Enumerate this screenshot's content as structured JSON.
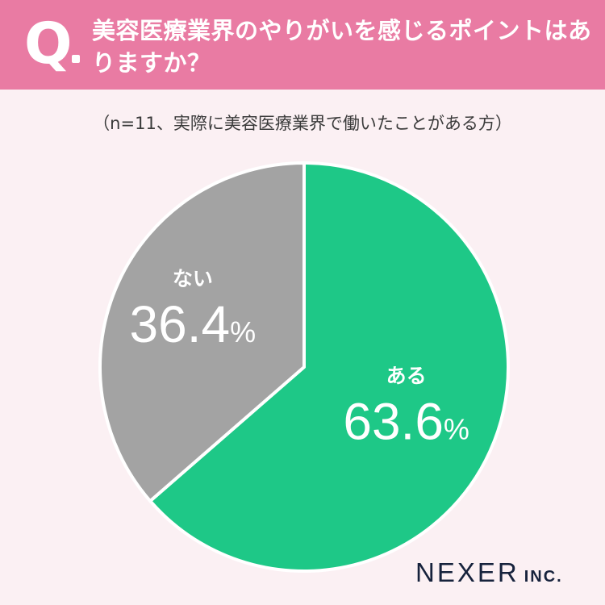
{
  "header": {
    "q_mark": "Q",
    "question": "美容医療業界のやりがいを感じるポイントはありますか？"
  },
  "note": "（n=11、実際に美容医療業界で働いたことがある方）",
  "logo": {
    "name": "NEXER",
    "suffix": "INC."
  },
  "colors": {
    "header": "#e97ba3",
    "background": "#fbf0f3",
    "green": "#1ec887",
    "gray": "#a3a3a3"
  },
  "chart_data": {
    "type": "pie",
    "title": "",
    "slices": [
      {
        "label": "ある",
        "value": 63.6,
        "display": "63.6",
        "unit": "%",
        "color": "#1ec887"
      },
      {
        "label": "ない",
        "value": 36.4,
        "display": "36.4",
        "unit": "%",
        "color": "#a3a3a3"
      }
    ]
  }
}
